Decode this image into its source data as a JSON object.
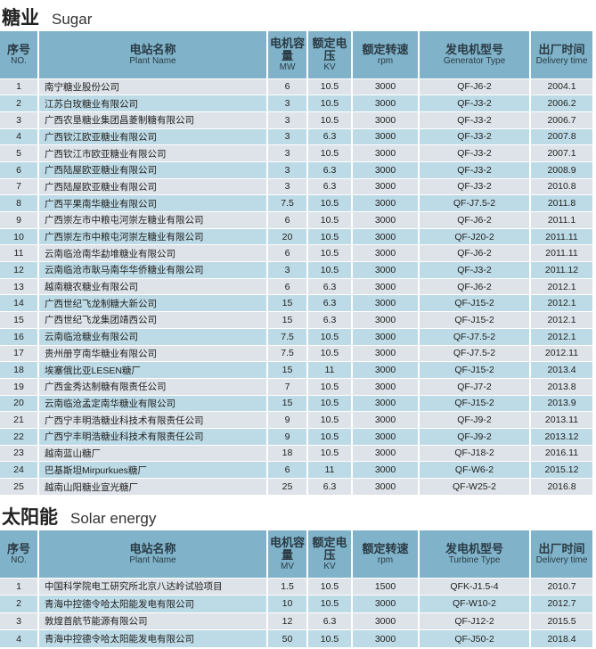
{
  "sugar": {
    "title_cn": "糖业",
    "title_en": "Sugar",
    "headers": {
      "no_cn": "序号",
      "no_en": "NO.",
      "name_cn": "电站名称",
      "name_en": "Plant Name",
      "cap_cn": "电机容量",
      "cap_en": "MW",
      "volt_cn": "额定电压",
      "volt_en": "KV",
      "speed_cn": "额定转速",
      "speed_en": "rpm",
      "type_cn": "发电机型号",
      "type_en": "Generator Type",
      "date_cn": "出厂时间",
      "date_en": "Delivery time"
    },
    "rows": [
      [
        "1",
        "南宁糖业股份公司",
        "6",
        "10.5",
        "3000",
        "QF-J6-2",
        "2004.1"
      ],
      [
        "2",
        "江苏白玫糖业有限公司",
        "3",
        "10.5",
        "3000",
        "QF-J3-2",
        "2006.2"
      ],
      [
        "3",
        "广西农垦糖业集团昌菱制糖有限公司",
        "3",
        "10.5",
        "3000",
        "QF-J3-2",
        "2006.7"
      ],
      [
        "4",
        "广西钦江欧亚糖业有限公司",
        "3",
        "6.3",
        "3000",
        "QF-J3-2",
        "2007.8"
      ],
      [
        "5",
        "广西钦江市欧亚糖业有限公司",
        "3",
        "10.5",
        "3000",
        "QF-J3-2",
        "2007.1"
      ],
      [
        "6",
        "广西陆屋欧亚糖业有限公司",
        "3",
        "6.3",
        "3000",
        "QF-J3-2",
        "2008.9"
      ],
      [
        "7",
        "广西陆屋欧亚糖业有限公司",
        "3",
        "6.3",
        "3000",
        "QF-J3-2",
        "2010.8"
      ],
      [
        "8",
        "广西平果南华糖业有限公司",
        "7.5",
        "10.5",
        "3000",
        "QF-J7.5-2",
        "2011.8"
      ],
      [
        "9",
        "广西崇左市中粮屯河崇左糖业有限公司",
        "6",
        "10.5",
        "3000",
        "QF-J6-2",
        "2011.1"
      ],
      [
        "10",
        "广西崇左市中粮屯河崇左糖业有限公司",
        "20",
        "10.5",
        "3000",
        "QF-J20-2",
        "2011.11"
      ],
      [
        "11",
        "云南临沧南华勐堆糖业有限公司",
        "6",
        "10.5",
        "3000",
        "QF-J6-2",
        "2011.11"
      ],
      [
        "12",
        "云南临沧市耿马南华华侨糖业有限公司",
        "3",
        "10.5",
        "3000",
        "QF-J3-2",
        "2011.12"
      ],
      [
        "13",
        "越南糖农糖业有限公司",
        "6",
        "6.3",
        "3000",
        "QF-J6-2",
        "2012.1"
      ],
      [
        "14",
        "广西世纪飞龙制糖大新公司",
        "15",
        "6.3",
        "3000",
        "QF-J15-2",
        "2012.1"
      ],
      [
        "15",
        "广西世纪飞龙集团靖西公司",
        "15",
        "6.3",
        "3000",
        "QF-J15-2",
        "2012.1"
      ],
      [
        "16",
        "云南临沧糖业有限公司",
        "7.5",
        "10.5",
        "3000",
        "QF-J7.5-2",
        "2012.1"
      ],
      [
        "17",
        "贵州册亨南华糖业有限公司",
        "7.5",
        "10.5",
        "3000",
        "QF-J7.5-2",
        "2012.11"
      ],
      [
        "18",
        "埃塞俄比亚LESEN糖厂",
        "15",
        "11",
        "3000",
        "QF-J15-2",
        "2013.4"
      ],
      [
        "19",
        "广西金秀达制糖有限责任公司",
        "7",
        "10.5",
        "3000",
        "QF-J7-2",
        "2013.8"
      ],
      [
        "20",
        "云南临沧孟定南华糖业有限公司",
        "15",
        "10.5",
        "3000",
        "QF-J15-2",
        "2013.9"
      ],
      [
        "21",
        "广西宁丰明浩糖业科技术有限责任公司",
        "9",
        "10.5",
        "3000",
        "QF-J9-2",
        "2013.11"
      ],
      [
        "22",
        "广西宁丰明浩糖业科技术有限责任公司",
        "9",
        "10.5",
        "3000",
        "QF-J9-2",
        "2013.12"
      ],
      [
        "23",
        "越南蓝山糖厂",
        "18",
        "10.5",
        "3000",
        "QF-J18-2",
        "2016.11"
      ],
      [
        "24",
        "巴基斯坦Mirpurkues糖厂",
        "6",
        "11",
        "3000",
        "QF-W6-2",
        "2015.12"
      ],
      [
        "25",
        "越南山阳糖业宣光糖厂",
        "25",
        "6.3",
        "3000",
        "QF-W25-2",
        "2016.8"
      ]
    ]
  },
  "solar": {
    "title_cn": "太阳能",
    "title_en": "Solar energy",
    "headers": {
      "no_cn": "序号",
      "no_en": "NO.",
      "name_cn": "电站名称",
      "name_en": "Plant Name",
      "cap_cn": "电机容量",
      "cap_en": "MV",
      "volt_cn": "额定电压",
      "volt_en": "KV",
      "speed_cn": "额定转速",
      "speed_en": "rpm",
      "type_cn": "发电机型号",
      "type_en": "Turbine Type",
      "date_cn": "出厂时间",
      "date_en": "Delivery time"
    },
    "rows": [
      [
        "1",
        "中国科学院电工研究所北京八达岭试验项目",
        "1.5",
        "10.5",
        "1500",
        "QFK-J1.5-4",
        "2010.7"
      ],
      [
        "2",
        "青海中控德令哈太阳能发电有限公司",
        "10",
        "10.5",
        "3000",
        "QF-W10-2",
        "2012.7"
      ],
      [
        "3",
        "敦煌首航节能源有限公司",
        "12",
        "6.3",
        "3000",
        "QF-J12-2",
        "2015.5"
      ],
      [
        "4",
        "青海中控德令哈太阳能发电有限公司",
        "50",
        "10.5",
        "3000",
        "QF-J50-2",
        "2018.4"
      ]
    ]
  }
}
